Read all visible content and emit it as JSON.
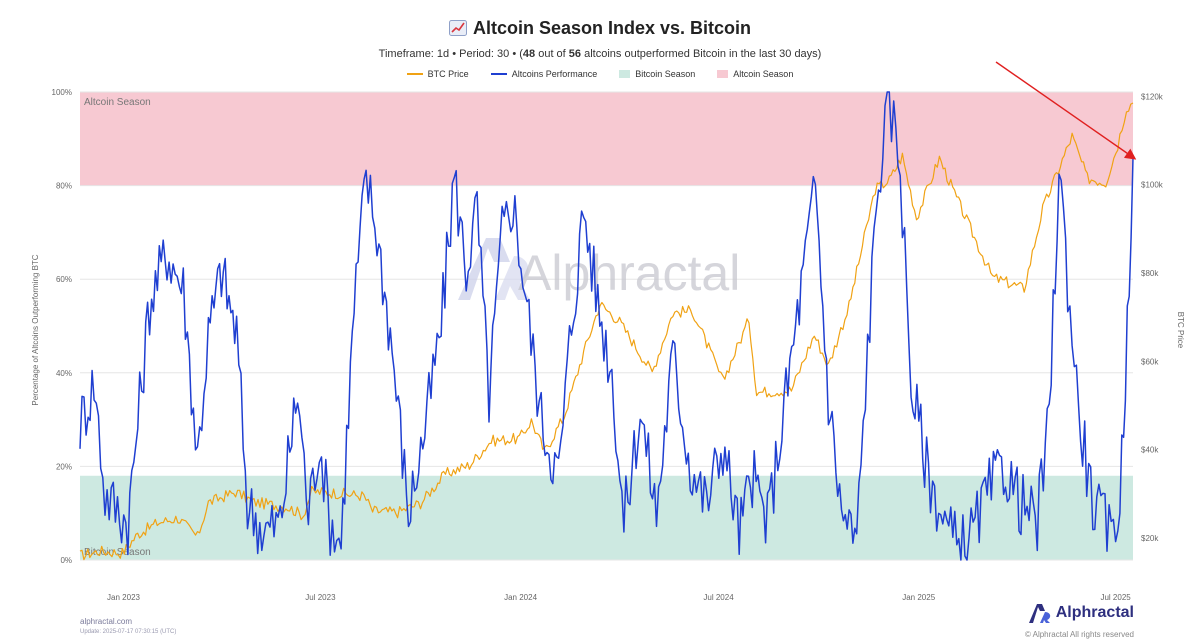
{
  "header": {
    "title": "Altcoin Season Index vs. Bitcoin",
    "subtitle_prefix": "Timeframe: 1d  •  Period: 30  •  (",
    "subtitle_count": "48",
    "subtitle_mid": " out of ",
    "subtitle_total": "56",
    "subtitle_suffix": " altcoins outperformed Bitcoin in the last 30 days)"
  },
  "legend": [
    {
      "label": "BTC Price",
      "color": "#f0a214",
      "kind": "line"
    },
    {
      "label": "Altcoins Performance",
      "color": "#1f3fd1",
      "kind": "line"
    },
    {
      "label": "Bitcoin Season",
      "color": "#cde9e1",
      "kind": "box"
    },
    {
      "label": "Altcoin Season",
      "color": "#f7c9d2",
      "kind": "box"
    }
  ],
  "footer": {
    "site": "alphractal.com",
    "update": "Update: 2025-07-17 07:30:15 (UTC)",
    "brand": "Alphractal",
    "copyright": "© Alphractal All rights reserved"
  },
  "watermark": "Alphractal",
  "chart_data": {
    "type": "line",
    "x_ticks": [
      "Jan 2023",
      "Jul 2023",
      "Jan 2024",
      "Jul 2024",
      "Jan 2025",
      "Jul 2025"
    ],
    "x_tick_dates": [
      "2023-01-01",
      "2023-07-01",
      "2024-01-01",
      "2024-07-01",
      "2025-01-01",
      "2025-07-01"
    ],
    "x_range": [
      "2022-11-22",
      "2025-07-17"
    ],
    "y_left": {
      "label": "Percentage of Altcoins Outperforming BTC",
      "range": [
        0,
        100
      ],
      "ticks": [
        "0%",
        "20%",
        "40%",
        "60%",
        "80%",
        "100%"
      ],
      "tick_values": [
        0,
        20,
        40,
        60,
        80,
        100
      ]
    },
    "y_right": {
      "label": "BTC Price",
      "range": [
        15000,
        121000
      ],
      "ticks": [
        "$20k",
        "$40k",
        "$60k",
        "$80k",
        "$100k",
        "$120k"
      ],
      "tick_values": [
        20000,
        40000,
        60000,
        80000,
        100000,
        120000
      ]
    },
    "bands": [
      {
        "name": "Altcoin Season",
        "from": 80,
        "to": 100,
        "color": "#f7c9d2",
        "label": "Altcoin Season"
      },
      {
        "name": "Bitcoin Season",
        "from": 0,
        "to": 18,
        "color": "#cde9e1",
        "label": "Bitcoin Season"
      }
    ],
    "series": [
      {
        "name": "BTC Price",
        "axis": "right",
        "color": "#f0a214",
        "points": [
          [
            "2022-11-22",
            16000
          ],
          [
            "2022-12-10",
            17000
          ],
          [
            "2022-12-31",
            16600
          ],
          [
            "2023-01-14",
            20800
          ],
          [
            "2023-02-01",
            23400
          ],
          [
            "2023-02-20",
            24500
          ],
          [
            "2023-03-10",
            20200
          ],
          [
            "2023-03-20",
            28000
          ],
          [
            "2023-04-14",
            30400
          ],
          [
            "2023-05-01",
            28100
          ],
          [
            "2023-06-01",
            27000
          ],
          [
            "2023-06-15",
            25100
          ],
          [
            "2023-06-23",
            30500
          ],
          [
            "2023-07-15",
            30200
          ],
          [
            "2023-08-10",
            29500
          ],
          [
            "2023-08-18",
            26100
          ],
          [
            "2023-09-10",
            25800
          ],
          [
            "2023-10-01",
            27900
          ],
          [
            "2023-10-24",
            34500
          ],
          [
            "2023-11-15",
            36500
          ],
          [
            "2023-12-05",
            42000
          ],
          [
            "2023-12-31",
            42500
          ],
          [
            "2024-01-11",
            46500
          ],
          [
            "2024-01-23",
            39500
          ],
          [
            "2024-02-10",
            47500
          ],
          [
            "2024-02-28",
            62000
          ],
          [
            "2024-03-14",
            73000
          ],
          [
            "2024-04-01",
            69000
          ],
          [
            "2024-05-01",
            57500
          ],
          [
            "2024-05-20",
            71000
          ],
          [
            "2024-06-07",
            71500
          ],
          [
            "2024-07-05",
            55500
          ],
          [
            "2024-07-29",
            69500
          ],
          [
            "2024-08-05",
            53000
          ],
          [
            "2024-09-06",
            53500
          ],
          [
            "2024-09-27",
            66000
          ],
          [
            "2024-10-10",
            59000
          ],
          [
            "2024-10-29",
            72500
          ],
          [
            "2024-11-12",
            88000
          ],
          [
            "2024-11-22",
            99000
          ],
          [
            "2024-12-05",
            101000
          ],
          [
            "2024-12-17",
            106500
          ],
          [
            "2024-12-30",
            92500
          ],
          [
            "2025-01-20",
            106000
          ],
          [
            "2025-02-03",
            98000
          ],
          [
            "2025-02-25",
            86000
          ],
          [
            "2025-03-10",
            79000
          ],
          [
            "2025-04-08",
            76500
          ],
          [
            "2025-04-25",
            94500
          ],
          [
            "2025-05-22",
            111000
          ],
          [
            "2025-06-05",
            101500
          ],
          [
            "2025-06-22",
            100500
          ],
          [
            "2025-07-03",
            109000
          ],
          [
            "2025-07-11",
            117500
          ],
          [
            "2025-07-17",
            118500
          ]
        ]
      },
      {
        "name": "Altcoins Performance",
        "axis": "left",
        "color": "#1f3fd1",
        "points": [
          [
            "2022-11-22",
            29
          ],
          [
            "2022-12-05",
            38
          ],
          [
            "2022-12-15",
            14
          ],
          [
            "2023-01-05",
            8
          ],
          [
            "2023-01-25",
            55
          ],
          [
            "2023-02-10",
            66
          ],
          [
            "2023-02-25",
            58
          ],
          [
            "2023-03-10",
            22
          ],
          [
            "2023-03-20",
            48
          ],
          [
            "2023-04-01",
            62
          ],
          [
            "2023-04-15",
            48
          ],
          [
            "2023-04-25",
            12
          ],
          [
            "2023-05-10",
            6
          ],
          [
            "2023-05-25",
            8
          ],
          [
            "2023-06-10",
            36
          ],
          [
            "2023-06-20",
            10
          ],
          [
            "2023-06-30",
            26
          ],
          [
            "2023-07-10",
            8
          ],
          [
            "2023-07-20",
            4
          ],
          [
            "2023-08-01",
            54
          ],
          [
            "2023-08-12",
            82
          ],
          [
            "2023-08-22",
            70
          ],
          [
            "2023-09-05",
            45
          ],
          [
            "2023-09-20",
            10
          ],
          [
            "2023-10-05",
            28
          ],
          [
            "2023-10-20",
            50
          ],
          [
            "2023-11-01",
            82
          ],
          [
            "2023-11-12",
            62
          ],
          [
            "2023-11-22",
            75
          ],
          [
            "2023-12-03",
            35
          ],
          [
            "2023-12-15",
            70
          ],
          [
            "2023-12-25",
            77
          ],
          [
            "2024-01-05",
            58
          ],
          [
            "2024-01-20",
            30
          ],
          [
            "2024-02-05",
            18
          ],
          [
            "2024-02-15",
            46
          ],
          [
            "2024-02-28",
            75
          ],
          [
            "2024-03-12",
            55
          ],
          [
            "2024-03-25",
            40
          ],
          [
            "2024-04-05",
            8
          ],
          [
            "2024-04-20",
            32
          ],
          [
            "2024-05-05",
            10
          ],
          [
            "2024-05-20",
            44
          ],
          [
            "2024-06-05",
            20
          ],
          [
            "2024-06-20",
            12
          ],
          [
            "2024-07-05",
            25
          ],
          [
            "2024-07-20",
            6
          ],
          [
            "2024-08-01",
            18
          ],
          [
            "2024-08-15",
            8
          ],
          [
            "2024-09-01",
            35
          ],
          [
            "2024-09-15",
            58
          ],
          [
            "2024-09-28",
            80
          ],
          [
            "2024-10-10",
            35
          ],
          [
            "2024-10-22",
            10
          ],
          [
            "2024-11-05",
            4
          ],
          [
            "2024-11-15",
            45
          ],
          [
            "2024-11-25",
            82
          ],
          [
            "2024-12-05",
            98
          ],
          [
            "2024-12-15",
            85
          ],
          [
            "2024-12-25",
            38
          ],
          [
            "2025-01-10",
            18
          ],
          [
            "2025-01-25",
            8
          ],
          [
            "2025-02-05",
            3
          ],
          [
            "2025-02-20",
            6
          ],
          [
            "2025-03-05",
            14
          ],
          [
            "2025-03-20",
            20
          ],
          [
            "2025-04-05",
            12
          ],
          [
            "2025-04-20",
            8
          ],
          [
            "2025-05-01",
            30
          ],
          [
            "2025-05-10",
            84
          ],
          [
            "2025-05-18",
            60
          ],
          [
            "2025-05-28",
            32
          ],
          [
            "2025-06-10",
            12
          ],
          [
            "2025-06-25",
            6
          ],
          [
            "2025-07-05",
            12
          ],
          [
            "2025-07-10",
            40
          ],
          [
            "2025-07-17",
            86
          ]
        ]
      }
    ]
  }
}
